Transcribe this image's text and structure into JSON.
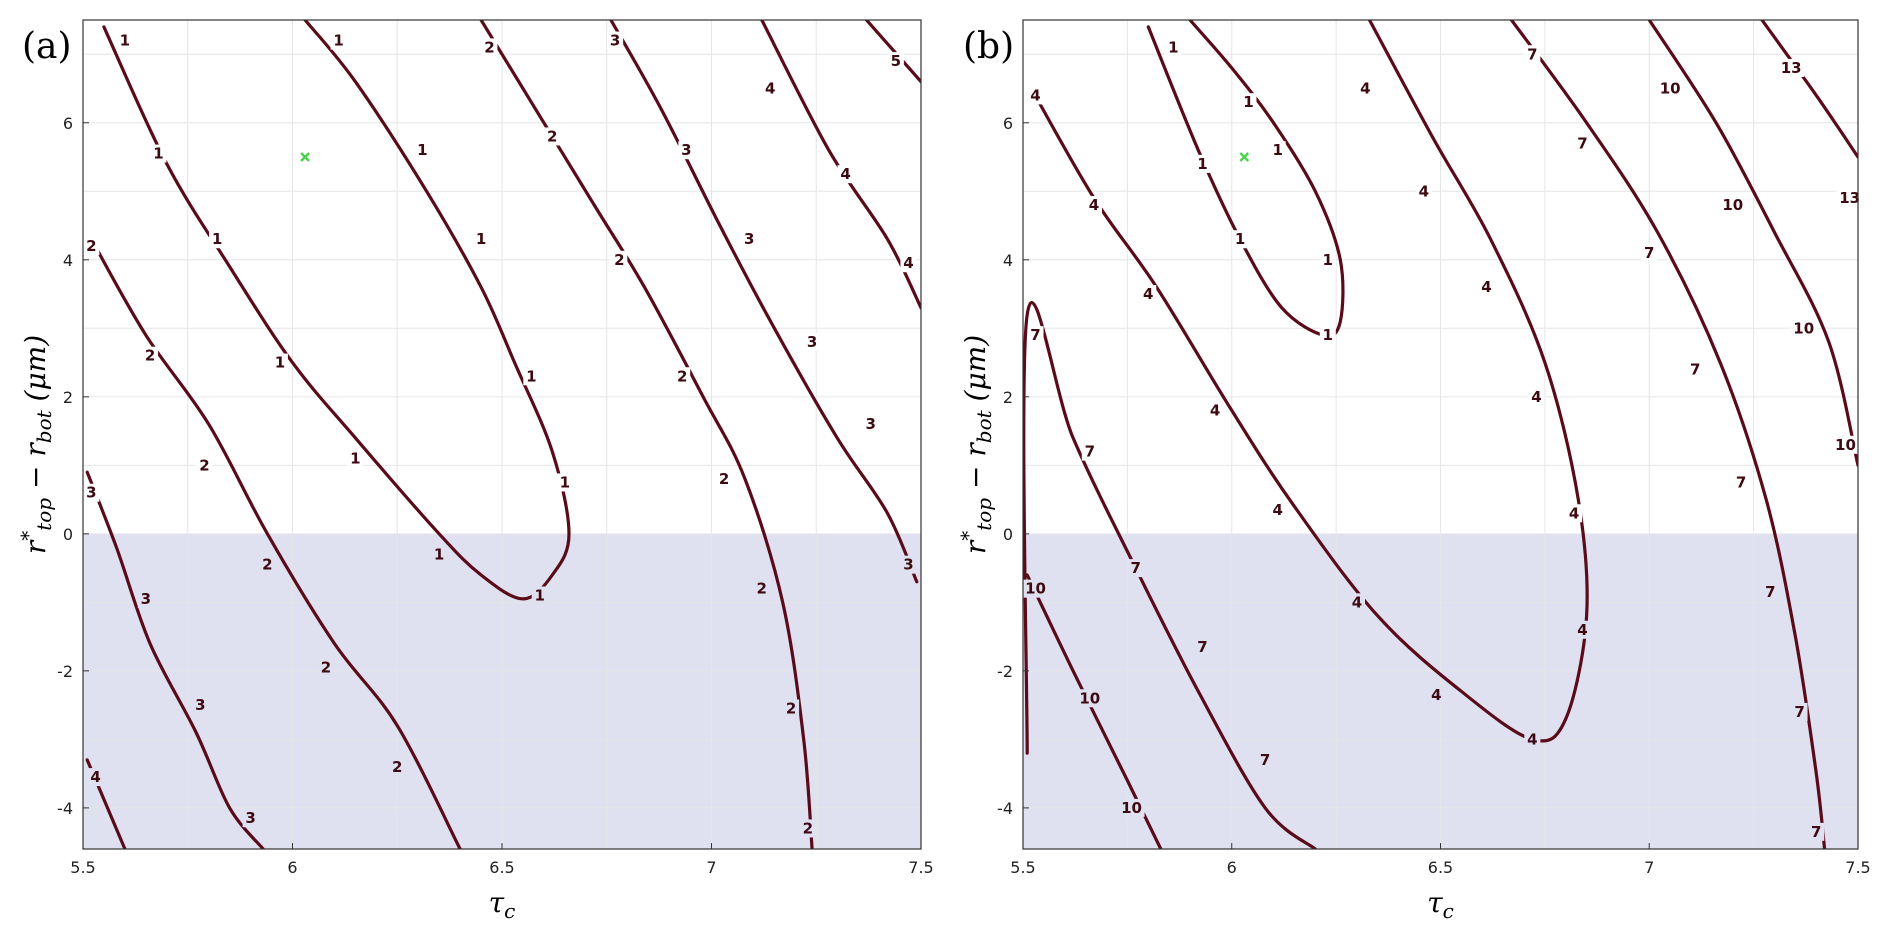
{
  "colors": {
    "contour": "#5a0b1a",
    "shade": "#dfe0f0",
    "grid": "#e6e6e6",
    "axis": "#333333",
    "marker": "#4cd24c"
  },
  "chart_data": [
    {
      "type": "contour",
      "panel": "(a)",
      "xlabel": "τ_c",
      "ylabel": "r*_top − r_bot (μm)",
      "xlim": [
        5.5,
        7.5
      ],
      "ylim": [
        -4.6,
        7.5
      ],
      "xticks": [
        5.5,
        6,
        6.5,
        7,
        7.5
      ],
      "yticks": [
        -4,
        -2,
        0,
        2,
        4,
        6
      ],
      "grid": true,
      "shaded_region": {
        "y_from": -4.6,
        "y_to": 0
      },
      "marker": {
        "x": 6.03,
        "y": 5.5,
        "symbol": "x"
      },
      "contours": [
        {
          "level": "1",
          "points": [
            [
              5.55,
              7.4
            ],
            [
              5.7,
              5.4
            ],
            [
              5.85,
              3.9
            ],
            [
              6.0,
              2.5
            ],
            [
              6.15,
              1.4
            ],
            [
              6.35,
              0.0
            ],
            [
              6.45,
              -0.6
            ],
            [
              6.55,
              -0.95
            ],
            [
              6.62,
              -0.6
            ],
            [
              6.66,
              0.0
            ],
            [
              6.62,
              1.2
            ],
            [
              6.53,
              2.5
            ],
            [
              6.45,
              3.6
            ],
            [
              6.32,
              5.0
            ],
            [
              6.15,
              6.6
            ],
            [
              6.03,
              7.5
            ]
          ],
          "labels": [
            [
              5.6,
              7.2
            ],
            [
              5.68,
              5.55
            ],
            [
              5.82,
              4.3
            ],
            [
              5.97,
              2.5
            ],
            [
              6.15,
              1.1
            ],
            [
              6.35,
              -0.3
            ],
            [
              6.59,
              -0.9
            ],
            [
              6.65,
              0.75
            ],
            [
              6.57,
              2.3
            ],
            [
              6.45,
              4.3
            ],
            [
              6.31,
              5.6
            ],
            [
              6.11,
              7.2
            ]
          ]
        },
        {
          "level": "2",
          "points": [
            [
              5.52,
              4.3
            ],
            [
              5.65,
              2.9
            ],
            [
              5.8,
              1.6
            ],
            [
              5.94,
              0.0
            ],
            [
              6.1,
              -1.6
            ],
            [
              6.25,
              -2.8
            ],
            [
              6.4,
              -4.6
            ]
          ],
          "labels": [
            [
              5.52,
              4.2
            ],
            [
              5.66,
              2.6
            ],
            [
              5.79,
              1.0
            ],
            [
              5.94,
              -0.45
            ],
            [
              6.08,
              -1.95
            ],
            [
              6.25,
              -3.4
            ]
          ]
        },
        {
          "level": "2",
          "points": [
            [
              6.45,
              7.5
            ],
            [
              6.58,
              6.2
            ],
            [
              6.72,
              4.8
            ],
            [
              6.84,
              3.6
            ],
            [
              6.98,
              2.0
            ],
            [
              7.08,
              0.8
            ],
            [
              7.17,
              -1.0
            ],
            [
              7.22,
              -3.0
            ],
            [
              7.24,
              -4.6
            ]
          ],
          "labels": [
            [
              6.47,
              7.1
            ],
            [
              6.62,
              5.8
            ],
            [
              6.78,
              4.0
            ],
            [
              6.93,
              2.3
            ],
            [
              7.03,
              0.8
            ],
            [
              7.12,
              -0.8
            ],
            [
              7.19,
              -2.55
            ],
            [
              7.23,
              -4.3
            ]
          ]
        },
        {
          "level": "3",
          "points": [
            [
              5.51,
              0.9
            ],
            [
              5.58,
              -0.2
            ],
            [
              5.66,
              -1.6
            ],
            [
              5.77,
              -2.9
            ],
            [
              5.85,
              -4.0
            ],
            [
              5.93,
              -4.6
            ]
          ],
          "labels": [
            [
              5.52,
              0.6
            ],
            [
              5.65,
              -0.95
            ],
            [
              5.78,
              -2.5
            ],
            [
              5.9,
              -4.15
            ]
          ]
        },
        {
          "level": "3",
          "points": [
            [
              6.76,
              7.5
            ],
            [
              6.88,
              6.2
            ],
            [
              7.02,
              4.5
            ],
            [
              7.15,
              3.0
            ],
            [
              7.3,
              1.4
            ],
            [
              7.42,
              0.3
            ],
            [
              7.49,
              -0.7
            ]
          ],
          "labels": [
            [
              6.77,
              7.2
            ],
            [
              6.94,
              5.6
            ],
            [
              7.09,
              4.3
            ],
            [
              7.24,
              2.8
            ],
            [
              7.38,
              1.6
            ],
            [
              7.47,
              -0.45
            ]
          ]
        },
        {
          "level": "4",
          "points": [
            [
              5.51,
              -3.3
            ],
            [
              5.6,
              -4.6
            ]
          ],
          "labels": [
            [
              5.53,
              -3.55
            ]
          ]
        },
        {
          "level": "4",
          "points": [
            [
              7.12,
              7.5
            ],
            [
              7.28,
              5.6
            ],
            [
              7.42,
              4.3
            ],
            [
              7.5,
              3.3
            ]
          ],
          "labels": [
            [
              7.14,
              6.5
            ],
            [
              7.32,
              5.25
            ],
            [
              7.47,
              3.95
            ]
          ]
        },
        {
          "level": "5",
          "points": [
            [
              7.37,
              7.5
            ],
            [
              7.5,
              6.6
            ]
          ],
          "labels": [
            [
              7.44,
              6.9
            ]
          ]
        }
      ]
    },
    {
      "type": "contour",
      "panel": "(b)",
      "xlabel": "τ_c",
      "ylabel": "r*_top − r_bot (μm)",
      "xlim": [
        5.5,
        7.5
      ],
      "ylim": [
        -4.6,
        7.5
      ],
      "xticks": [
        5.5,
        6,
        6.5,
        7,
        7.5
      ],
      "yticks": [
        -4,
        -2,
        0,
        2,
        4,
        6
      ],
      "grid": true,
      "shaded_region": {
        "y_from": -4.6,
        "y_to": 0
      },
      "marker": {
        "x": 6.03,
        "y": 5.5,
        "symbol": "x"
      },
      "contours": [
        {
          "level": "1",
          "points": [
            [
              5.8,
              7.4
            ],
            [
              5.92,
              5.6
            ],
            [
              6.02,
              4.3
            ],
            [
              6.12,
              3.3
            ],
            [
              6.22,
              2.9
            ],
            [
              6.26,
              3.1
            ],
            [
              6.26,
              4.0
            ],
            [
              6.2,
              5.0
            ],
            [
              6.1,
              6.0
            ],
            [
              6.0,
              6.8
            ],
            [
              5.9,
              7.5
            ]
          ],
          "labels": [
            [
              5.86,
              7.1
            ],
            [
              5.93,
              5.4
            ],
            [
              6.02,
              4.3
            ],
            [
              6.23,
              2.9
            ],
            [
              6.23,
              4.0
            ],
            [
              6.11,
              5.6
            ],
            [
              6.04,
              6.3
            ]
          ]
        },
        {
          "level": "4",
          "points": [
            [
              5.52,
              6.5
            ],
            [
              5.67,
              4.9
            ],
            [
              5.82,
              3.6
            ],
            [
              6.0,
              1.8
            ],
            [
              6.15,
              0.4
            ],
            [
              6.35,
              -1.2
            ],
            [
              6.55,
              -2.3
            ],
            [
              6.72,
              -3.0
            ],
            [
              6.8,
              -2.7
            ],
            [
              6.85,
              -1.2
            ],
            [
              6.83,
              0.5
            ],
            [
              6.75,
              2.5
            ],
            [
              6.62,
              4.3
            ],
            [
              6.48,
              5.8
            ],
            [
              6.33,
              7.5
            ]
          ],
          "labels": [
            [
              5.53,
              6.4
            ],
            [
              5.67,
              4.8
            ],
            [
              5.8,
              3.5
            ],
            [
              5.96,
              1.8
            ],
            [
              6.11,
              0.35
            ],
            [
              6.3,
              -1.0
            ],
            [
              6.49,
              -2.35
            ],
            [
              6.72,
              -3.0
            ],
            [
              6.84,
              -1.4
            ],
            [
              6.82,
              0.3
            ],
            [
              6.73,
              2.0
            ],
            [
              6.61,
              3.6
            ],
            [
              6.46,
              5.0
            ],
            [
              6.32,
              6.5
            ]
          ]
        },
        {
          "level": "7",
          "points": [
            [
              5.51,
              -3.2
            ],
            [
              5.51,
              3.2
            ],
            [
              5.62,
              1.4
            ],
            [
              5.77,
              -0.5
            ],
            [
              5.92,
              -2.3
            ],
            [
              6.08,
              -4.0
            ],
            [
              6.2,
              -4.6
            ]
          ],
          "labels": [
            [
              5.53,
              2.9
            ],
            [
              5.66,
              1.2
            ],
            [
              5.77,
              -0.5
            ],
            [
              5.93,
              -1.65
            ],
            [
              6.08,
              -3.3
            ]
          ]
        },
        {
          "level": "7",
          "points": [
            [
              6.67,
              7.5
            ],
            [
              6.85,
              6.0
            ],
            [
              7.02,
              4.4
            ],
            [
              7.17,
              2.5
            ],
            [
              7.28,
              0.5
            ],
            [
              7.35,
              -1.5
            ],
            [
              7.4,
              -3.5
            ],
            [
              7.42,
              -4.6
            ]
          ],
          "labels": [
            [
              6.72,
              7.0
            ],
            [
              6.84,
              5.7
            ],
            [
              7.0,
              4.1
            ],
            [
              7.11,
              2.4
            ],
            [
              7.22,
              0.75
            ],
            [
              7.29,
              -0.85
            ],
            [
              7.36,
              -2.6
            ],
            [
              7.4,
              -4.35
            ]
          ]
        },
        {
          "level": "10",
          "points": [
            [
              5.51,
              -0.6
            ],
            [
              5.62,
              -2.0
            ],
            [
              5.75,
              -3.6
            ],
            [
              5.83,
              -4.6
            ]
          ],
          "labels": [
            [
              5.53,
              -0.8
            ],
            [
              5.66,
              -2.4
            ],
            [
              5.76,
              -4.0
            ]
          ]
        },
        {
          "level": "10",
          "points": [
            [
              7.0,
              7.5
            ],
            [
              7.16,
              6.0
            ],
            [
              7.3,
              4.4
            ],
            [
              7.43,
              2.8
            ],
            [
              7.5,
              1.0
            ]
          ],
          "labels": [
            [
              7.05,
              6.5
            ],
            [
              7.2,
              4.8
            ],
            [
              7.37,
              3.0
            ],
            [
              7.47,
              1.3
            ]
          ]
        },
        {
          "level": "13",
          "points": [
            [
              7.27,
              7.5
            ],
            [
              7.4,
              6.4
            ],
            [
              7.5,
              5.5
            ]
          ],
          "labels": [
            [
              7.34,
              6.8
            ],
            [
              7.48,
              4.9
            ]
          ]
        }
      ]
    }
  ]
}
